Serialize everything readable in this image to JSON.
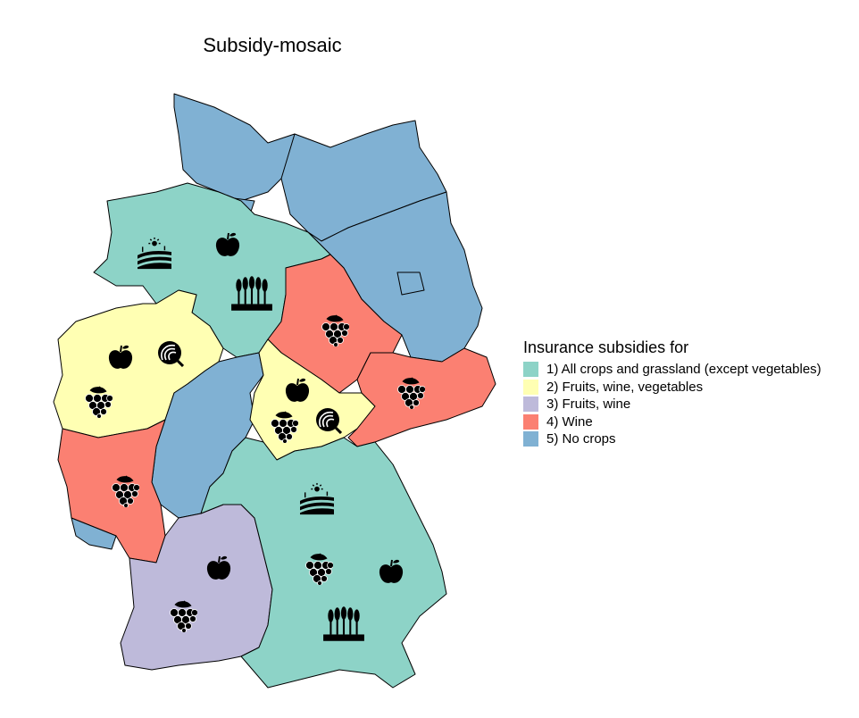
{
  "title": "Subsidy-mosaic",
  "legend": {
    "title": "Insurance subsidies for",
    "items": [
      {
        "label": "1) All crops and grassland (except vegetables)",
        "color": "#8DD3C7"
      },
      {
        "label": "2) Fruits, wine, vegetables",
        "color": "#FFFFB3"
      },
      {
        "label": "3) Fruits, wine",
        "color": "#BEBADA"
      },
      {
        "label": "4) Wine",
        "color": "#FB8072"
      },
      {
        "label": "5) No crops",
        "color": "#80B1D3"
      }
    ]
  },
  "regions": [
    {
      "category": 5,
      "icons": []
    },
    {
      "category": 5,
      "icons": []
    },
    {
      "category": 5,
      "icons": []
    },
    {
      "category": 5,
      "icons": []
    },
    {
      "category": 5,
      "icons": []
    },
    {
      "category": 1,
      "icons": [
        "field-icon",
        "apple-icon",
        "wheat-icon"
      ]
    },
    {
      "category": 2,
      "icons": [
        "apple-icon",
        "onion-icon",
        "grapes-icon"
      ]
    },
    {
      "category": 5,
      "icons": []
    },
    {
      "category": 4,
      "icons": [
        "grapes-icon"
      ]
    },
    {
      "category": 2,
      "icons": [
        "apple-icon",
        "grapes-icon",
        "onion-icon"
      ]
    },
    {
      "category": 4,
      "icons": [
        "grapes-icon"
      ]
    },
    {
      "category": 4,
      "icons": [
        "grapes-icon"
      ]
    },
    {
      "category": 5,
      "icons": []
    },
    {
      "category": 3,
      "icons": [
        "apple-icon",
        "grapes-icon"
      ]
    },
    {
      "category": 1,
      "icons": [
        "field-icon",
        "grapes-icon",
        "apple-icon",
        "wheat-icon"
      ]
    }
  ]
}
